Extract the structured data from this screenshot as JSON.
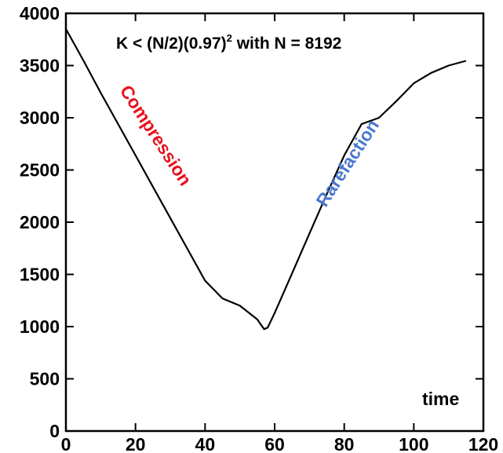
{
  "chart_data": {
    "type": "line",
    "title": "",
    "xlabel": "time",
    "ylabel": "",
    "xlim": [
      0,
      120
    ],
    "ylim": [
      0,
      4000
    ],
    "x_ticks": [
      0,
      20,
      40,
      60,
      80,
      100,
      120
    ],
    "x_tick_labels": [
      "0",
      "20",
      "40",
      "60",
      "80",
      "100",
      "120"
    ],
    "y_ticks": [
      0,
      500,
      1000,
      1500,
      2000,
      2500,
      3000,
      3500,
      4000
    ],
    "y_tick_labels": [
      "0",
      "500",
      "1000",
      "1500",
      "2000",
      "2500",
      "3000",
      "3500",
      "4000"
    ],
    "grid": false,
    "series": [
      {
        "x": [
          0,
          5,
          10,
          15,
          20,
          25,
          30,
          35,
          40,
          45,
          50,
          55,
          56,
          57,
          58,
          60,
          65,
          70,
          75,
          80,
          85,
          90,
          95,
          100,
          105,
          110,
          115
        ],
        "y": [
          3850,
          3550,
          3240,
          2940,
          2640,
          2340,
          2040,
          1740,
          1440,
          1270,
          1200,
          1070,
          1020,
          975,
          990,
          1130,
          1510,
          1890,
          2270,
          2640,
          2940,
          3000,
          3160,
          3330,
          3430,
          3500,
          3545
        ],
        "color": "#000000"
      }
    ],
    "annotations": {
      "formula": {
        "main": "K < (N/2)(0.97)",
        "superscript": "2",
        "tail": " with N = 8192"
      },
      "compression": {
        "text": "Compression",
        "color": "#e8101c"
      },
      "rarefaction": {
        "text": "Rarefaction",
        "color": "#4a78cf"
      }
    }
  }
}
